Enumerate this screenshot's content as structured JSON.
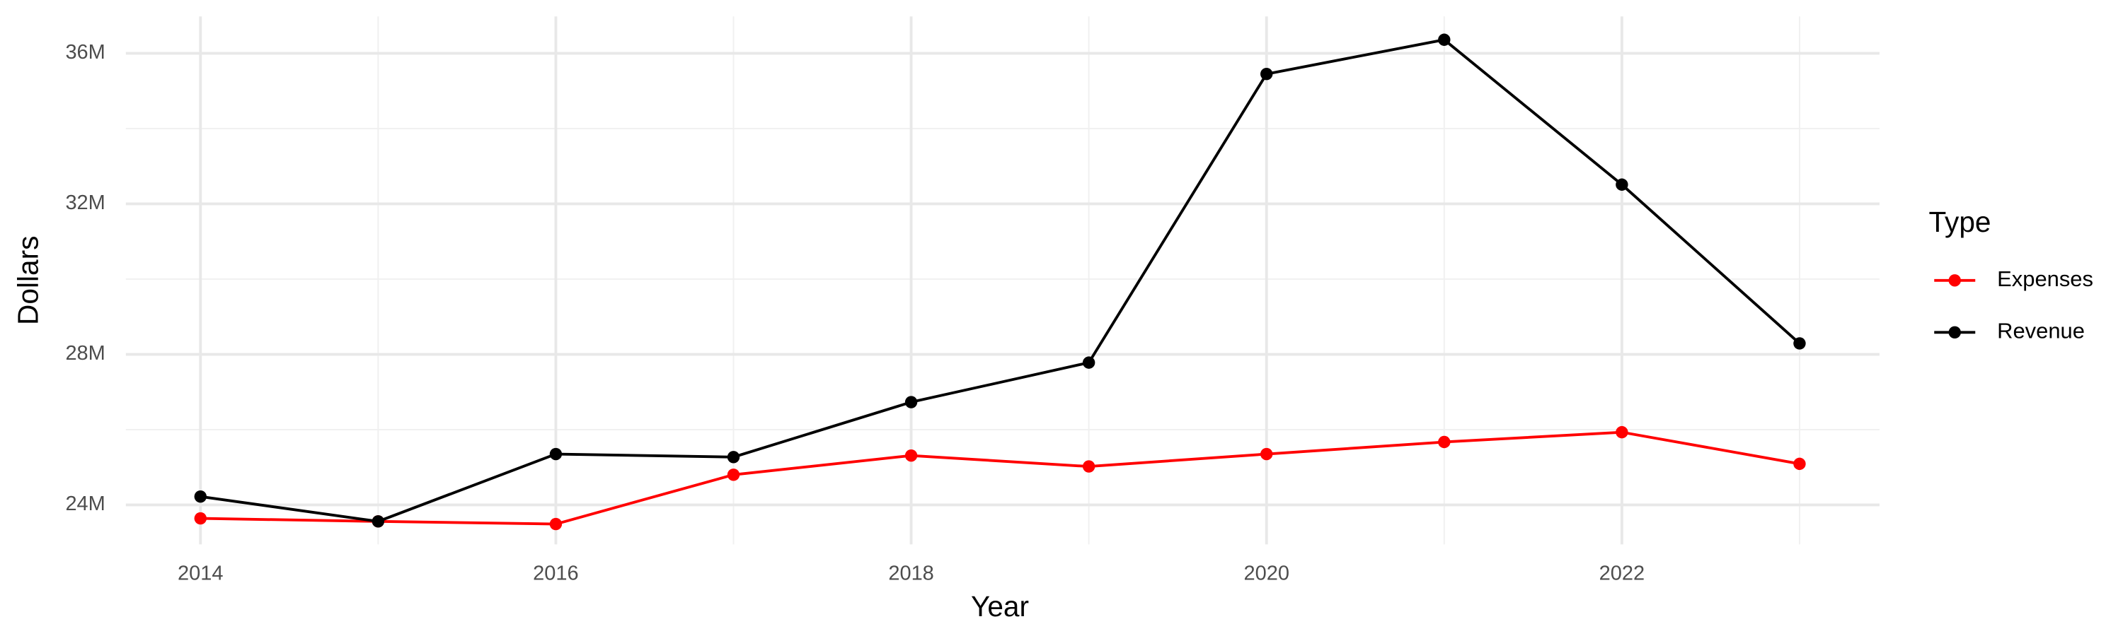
{
  "chart_data": {
    "type": "line",
    "x_label": "Year",
    "y_label": "Dollars",
    "legend_title": "Type",
    "x": [
      2014,
      2015,
      2016,
      2017,
      2018,
      2019,
      2020,
      2021,
      2022,
      2023
    ],
    "series": [
      {
        "name": "Expenses",
        "color": "#ff0000",
        "values": [
          23640000,
          23560000,
          23490000,
          24800000,
          25310000,
          25020000,
          25350000,
          25670000,
          25930000,
          25090000
        ]
      },
      {
        "name": "Revenue",
        "color": "#000000",
        "values": [
          24220000,
          23560000,
          25350000,
          25270000,
          26730000,
          27780000,
          35450000,
          36360000,
          32510000,
          28290000
        ]
      }
    ],
    "xlim": [
      2013.58,
      2023.45
    ],
    "xticks": [
      2014,
      2016,
      2018,
      2020,
      2022
    ],
    "x_minor_ticks": [
      2015,
      2017,
      2019,
      2021,
      2023
    ],
    "ylim": [
      22950000,
      36980000
    ],
    "yticks": [
      {
        "value": 24000000,
        "label": "24M"
      },
      {
        "value": 28000000,
        "label": "28M"
      },
      {
        "value": 32000000,
        "label": "32M"
      },
      {
        "value": 36000000,
        "label": "36M"
      }
    ],
    "y_minor_ticks": [
      26000000,
      30000000,
      34000000
    ],
    "grid": true,
    "legend_position": "right"
  }
}
